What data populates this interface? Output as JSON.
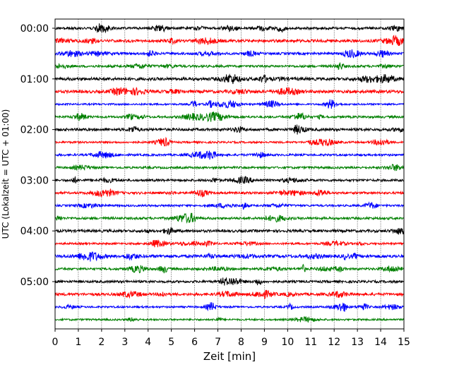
{
  "chart_data": {
    "type": "line",
    "title": "",
    "xlabel": "Zeit  [min]",
    "ylabel": "UTC (Lokalzeit = UTC + 01:00)",
    "xlim": [
      0,
      15
    ],
    "x_ticks": [
      0,
      1,
      2,
      3,
      4,
      5,
      6,
      7,
      8,
      9,
      10,
      11,
      12,
      13,
      14,
      15
    ],
    "x_grid": true,
    "y_ticks": [
      "00:00",
      "01:00",
      "02:00",
      "03:00",
      "04:00",
      "05:00"
    ],
    "trace_interval_minutes": 15,
    "trace_colors": [
      "#000000",
      "#ff0000",
      "#0000ff",
      "#008000"
    ],
    "traces": [
      {
        "start": "00:00",
        "color": "#000000"
      },
      {
        "start": "00:15",
        "color": "#ff0000"
      },
      {
        "start": "00:30",
        "color": "#0000ff"
      },
      {
        "start": "00:45",
        "color": "#008000"
      },
      {
        "start": "01:00",
        "color": "#000000"
      },
      {
        "start": "01:15",
        "color": "#ff0000"
      },
      {
        "start": "01:30",
        "color": "#0000ff"
      },
      {
        "start": "01:45",
        "color": "#008000"
      },
      {
        "start": "02:00",
        "color": "#000000"
      },
      {
        "start": "02:15",
        "color": "#ff0000"
      },
      {
        "start": "02:30",
        "color": "#0000ff"
      },
      {
        "start": "02:45",
        "color": "#008000"
      },
      {
        "start": "03:00",
        "color": "#000000"
      },
      {
        "start": "03:15",
        "color": "#ff0000"
      },
      {
        "start": "03:30",
        "color": "#0000ff"
      },
      {
        "start": "03:45",
        "color": "#008000"
      },
      {
        "start": "04:00",
        "color": "#000000"
      },
      {
        "start": "04:15",
        "color": "#ff0000"
      },
      {
        "start": "04:30",
        "color": "#0000ff"
      },
      {
        "start": "04:45",
        "color": "#008000"
      },
      {
        "start": "05:00",
        "color": "#000000"
      },
      {
        "start": "05:15",
        "color": "#ff0000"
      },
      {
        "start": "05:30",
        "color": "#0000ff"
      },
      {
        "start": "05:45",
        "color": "#008000"
      }
    ]
  }
}
